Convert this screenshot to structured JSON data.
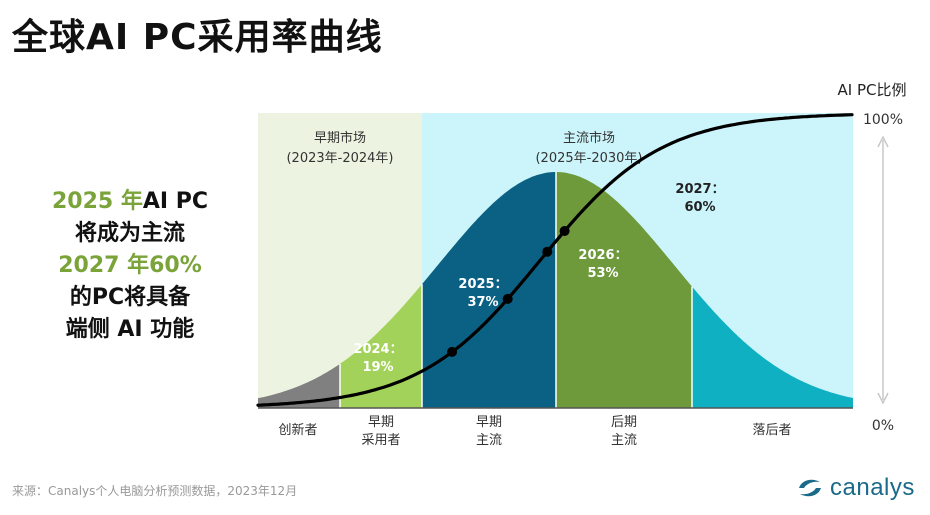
{
  "title": "全球AI PC采用率曲线",
  "callout": {
    "line1_year": "2025 年",
    "line1_rest": "AI PC",
    "line2": "将成为主流",
    "line3": "2027 年60%",
    "line4": "的PC将具备",
    "line5": "端侧 AI 功能"
  },
  "source": "来源：Canalys个人电脑分析预测数据，2023年12月",
  "logo": {
    "text": "canalys",
    "icon": "canalys-swoosh-icon"
  },
  "colors": {
    "early_market_bg": "#ecf4e1",
    "mainstream_bg": "#ccf5fb",
    "innovators": "#808080",
    "early_adopters": "#a3d25a",
    "early_majority": "#0a6184",
    "late_majority": "#6e9a3b",
    "laggards": "#0fb0c2",
    "curve": "#000000"
  },
  "chart_data": {
    "type": "line",
    "title": "全球AI PC采用率曲线",
    "ylabel": "AI PC比例",
    "y_ticks": [
      "100%",
      "0%"
    ],
    "ylim": [
      0,
      100
    ],
    "regions": [
      {
        "label": "早期市场",
        "sublabel": "(2023年-2024年)"
      },
      {
        "label": "主流市场",
        "sublabel": "(2025年-2030年)"
      }
    ],
    "segments": [
      {
        "name": "innovators",
        "label_lines": [
          "创新者"
        ]
      },
      {
        "name": "early_adopters",
        "label_lines": [
          "早期",
          "采用者"
        ]
      },
      {
        "name": "early_majority",
        "label_lines": [
          "早期",
          "主流"
        ]
      },
      {
        "name": "late_majority",
        "label_lines": [
          "后期",
          "主流"
        ]
      },
      {
        "name": "laggards",
        "label_lines": [
          "落后者"
        ]
      }
    ],
    "points": [
      {
        "year": "2024：",
        "value": 19,
        "label": "19%"
      },
      {
        "year": "2025：",
        "value": 37,
        "label": "37%"
      },
      {
        "year": "2026：",
        "value": 53,
        "label": "53%"
      },
      {
        "year": "2027：",
        "value": 60,
        "label": "60%"
      }
    ]
  }
}
